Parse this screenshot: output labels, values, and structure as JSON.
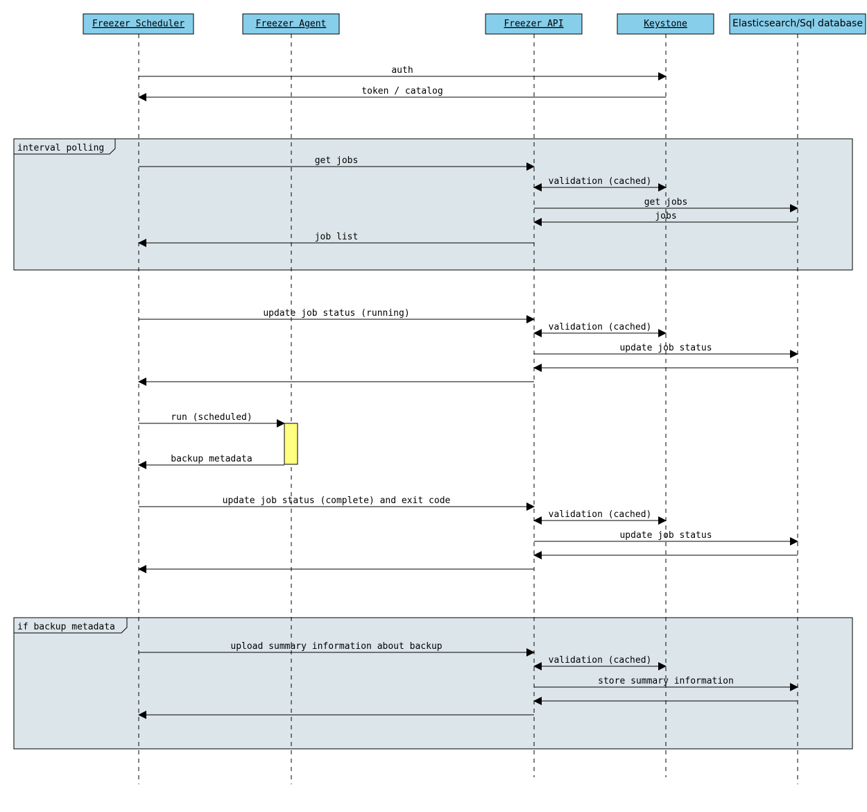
{
  "colors": {
    "participant_fill": "#87CEEB",
    "frame_fill": "#DCE6EA",
    "activation_fill": "#FFFF80"
  },
  "participants": [
    {
      "id": "scheduler",
      "label": "Freezer Scheduler"
    },
    {
      "id": "agent",
      "label": "Freezer Agent"
    },
    {
      "id": "api",
      "label": "Freezer API"
    },
    {
      "id": "keystone",
      "label": "Keystone"
    },
    {
      "id": "db",
      "label": "Elasticsearch/Sql database"
    }
  ],
  "frames": [
    {
      "label": "interval polling"
    },
    {
      "label": "if backup metadata"
    }
  ],
  "messages": [
    {
      "from": "scheduler",
      "to": "keystone",
      "label": "auth"
    },
    {
      "from": "keystone",
      "to": "scheduler",
      "label": "token / catalog"
    },
    {
      "from": "scheduler",
      "to": "api",
      "label": "get jobs"
    },
    {
      "from": "api",
      "to": "keystone",
      "label": "validation (cached)",
      "bidirectional": true
    },
    {
      "from": "api",
      "to": "db",
      "label": "get jobs"
    },
    {
      "from": "db",
      "to": "api",
      "label": "jobs"
    },
    {
      "from": "api",
      "to": "scheduler",
      "label": "job list"
    },
    {
      "from": "scheduler",
      "to": "api",
      "label": "update job status (running)"
    },
    {
      "from": "api",
      "to": "keystone",
      "label": "validation (cached)",
      "bidirectional": true
    },
    {
      "from": "api",
      "to": "db",
      "label": "update job status"
    },
    {
      "from": "db",
      "to": "api",
      "label": ""
    },
    {
      "from": "api",
      "to": "scheduler",
      "label": ""
    },
    {
      "from": "scheduler",
      "to": "agent",
      "label": "run (scheduled)"
    },
    {
      "from": "agent",
      "to": "scheduler",
      "label": "backup metadata"
    },
    {
      "from": "scheduler",
      "to": "api",
      "label": "update job status (complete) and exit code"
    },
    {
      "from": "api",
      "to": "keystone",
      "label": "validation (cached)",
      "bidirectional": true
    },
    {
      "from": "api",
      "to": "db",
      "label": "update job status"
    },
    {
      "from": "db",
      "to": "api",
      "label": ""
    },
    {
      "from": "api",
      "to": "scheduler",
      "label": ""
    },
    {
      "from": "scheduler",
      "to": "api",
      "label": "upload summary information about backup"
    },
    {
      "from": "api",
      "to": "keystone",
      "label": "validation (cached)",
      "bidirectional": true
    },
    {
      "from": "api",
      "to": "db",
      "label": "store summary information"
    },
    {
      "from": "db",
      "to": "api",
      "label": ""
    },
    {
      "from": "api",
      "to": "scheduler",
      "label": ""
    }
  ]
}
